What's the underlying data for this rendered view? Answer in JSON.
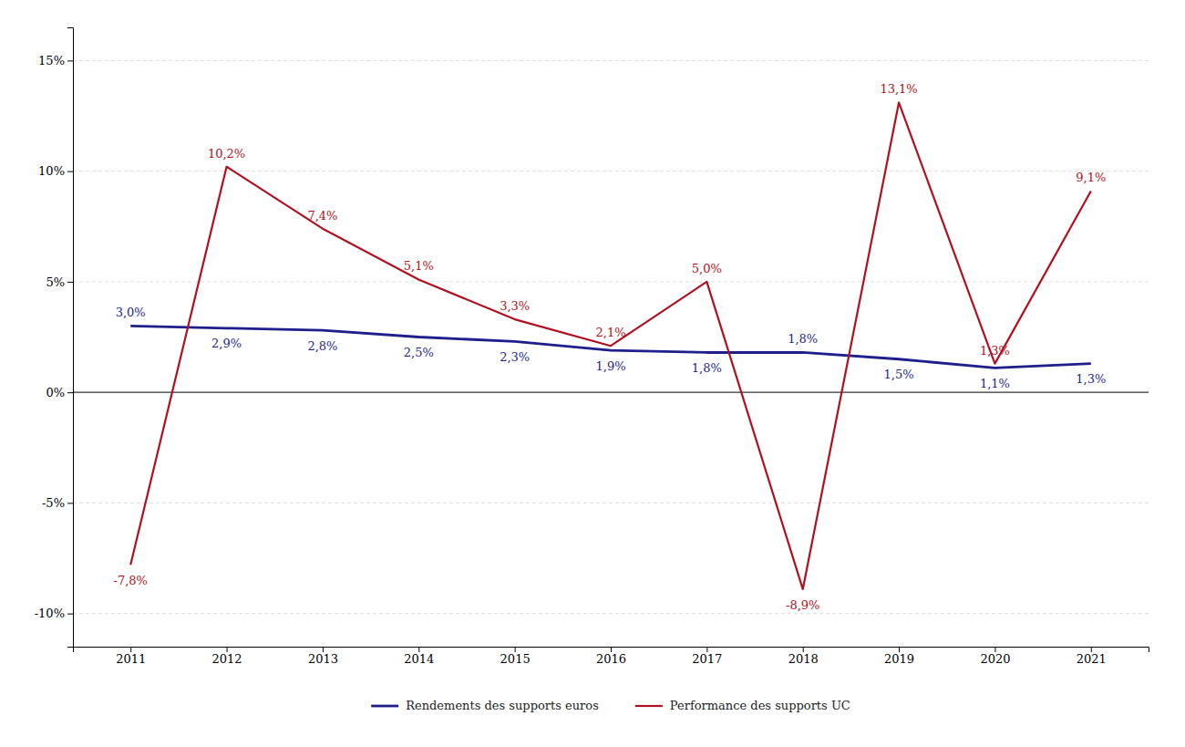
{
  "chart_data": {
    "type": "line",
    "x": [
      2011,
      2012,
      2013,
      2014,
      2015,
      2016,
      2017,
      2018,
      2019,
      2020,
      2021
    ],
    "xlim": [
      2010.4,
      2021.6
    ],
    "xticks": [
      2011,
      2012,
      2013,
      2014,
      2015,
      2016,
      2017,
      2018,
      2019,
      2020,
      2021
    ],
    "ylim": [
      -11.5,
      16.5
    ],
    "yticks": [
      {
        "value": -10,
        "label": "-10%"
      },
      {
        "value": -5,
        "label": "-5%"
      },
      {
        "value": 0,
        "label": "0%"
      },
      {
        "value": 5,
        "label": "5%"
      },
      {
        "value": 10,
        "label": "10%"
      },
      {
        "value": 15,
        "label": "15%"
      }
    ],
    "grid": true,
    "legend": "bottom",
    "data_labels": true,
    "series": [
      {
        "name": "Rendements des supports euros",
        "color": "#1f1f8c",
        "values": [
          3.0,
          2.9,
          2.8,
          2.5,
          2.3,
          1.9,
          1.8,
          1.8,
          1.5,
          1.1,
          1.3
        ],
        "value_labels": [
          "3,0%",
          "2,9%",
          "2,8%",
          "2,5%",
          "2,3%",
          "1,9%",
          "1,8%",
          "1,8%",
          "1,5%",
          "1,1%",
          "1,3%"
        ]
      },
      {
        "name": "Performance des supports UC",
        "color": "#b01020",
        "values": [
          -7.8,
          10.2,
          7.4,
          5.1,
          3.3,
          2.1,
          5.0,
          -8.9,
          13.1,
          1.3,
          9.1
        ],
        "value_labels": [
          "-7,8%",
          "10,2%",
          "7,4%",
          "5,1%",
          "3,3%",
          "2,1%",
          "5,0%",
          "-8,9%",
          "13,1%",
          "1,3%",
          "9,1%"
        ]
      }
    ]
  }
}
